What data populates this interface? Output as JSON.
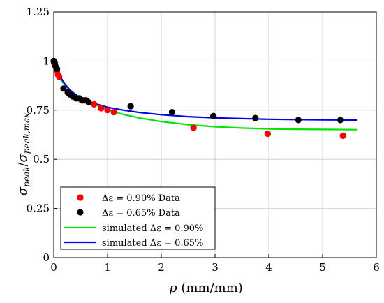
{
  "chart_data": {
    "type": "scatter",
    "xlabel": "p (mm/mm)",
    "ylabel": "σpeak/σpeak,max",
    "xlim": [
      0,
      6
    ],
    "ylim": [
      0,
      1.25
    ],
    "x_ticks": [
      "0",
      "1",
      "2",
      "3",
      "4",
      "5",
      "6"
    ],
    "y_ticks": [
      "0",
      "0.25",
      "0.5",
      "0.75",
      "1",
      "1.25"
    ],
    "grid": true,
    "legend_position": "bottom-left",
    "series": [
      {
        "name": "Δε = 0.90% Data",
        "kind": "scatter",
        "color": "#ff0000",
        "points": [
          [
            0.0,
            1.0
          ],
          [
            0.02,
            0.99
          ],
          [
            0.04,
            0.97
          ],
          [
            0.06,
            0.95
          ],
          [
            0.08,
            0.93
          ],
          [
            0.1,
            0.92
          ],
          [
            0.45,
            0.81
          ],
          [
            0.52,
            0.8
          ],
          [
            0.58,
            0.8
          ],
          [
            0.75,
            0.78
          ],
          [
            0.88,
            0.76
          ],
          [
            1.0,
            0.75
          ],
          [
            1.12,
            0.74
          ],
          [
            2.6,
            0.66
          ],
          [
            3.98,
            0.63
          ],
          [
            5.38,
            0.62
          ]
        ]
      },
      {
        "name": "Δε = 0.65% Data",
        "kind": "scatter",
        "color": "#000000",
        "points": [
          [
            0.0,
            1.0
          ],
          [
            0.01,
            0.99
          ],
          [
            0.02,
            0.98
          ],
          [
            0.04,
            0.97
          ],
          [
            0.06,
            0.96
          ],
          [
            0.18,
            0.86
          ],
          [
            0.26,
            0.84
          ],
          [
            0.3,
            0.83
          ],
          [
            0.35,
            0.82
          ],
          [
            0.42,
            0.81
          ],
          [
            0.48,
            0.81
          ],
          [
            0.54,
            0.8
          ],
          [
            0.6,
            0.8
          ],
          [
            0.65,
            0.79
          ],
          [
            1.43,
            0.77
          ],
          [
            2.2,
            0.74
          ],
          [
            2.97,
            0.72
          ],
          [
            3.75,
            0.71
          ],
          [
            4.55,
            0.7
          ],
          [
            5.33,
            0.7
          ]
        ]
      },
      {
        "name": "simulated Δε = 0.90%",
        "kind": "line",
        "color": "#00e600",
        "points": [
          [
            0.0,
            0.96
          ],
          [
            0.1,
            0.915
          ],
          [
            0.2,
            0.88
          ],
          [
            0.3,
            0.853
          ],
          [
            0.4,
            0.832
          ],
          [
            0.5,
            0.813
          ],
          [
            0.7,
            0.785
          ],
          [
            1.0,
            0.753
          ],
          [
            1.3,
            0.728
          ],
          [
            1.6,
            0.71
          ],
          [
            2.0,
            0.692
          ],
          [
            2.5,
            0.676
          ],
          [
            3.0,
            0.666
          ],
          [
            3.5,
            0.659
          ],
          [
            4.0,
            0.655
          ],
          [
            4.5,
            0.653
          ],
          [
            5.0,
            0.652
          ],
          [
            5.65,
            0.651
          ]
        ]
      },
      {
        "name": "simulated Δε = 0.65%",
        "kind": "line",
        "color": "#0000e6",
        "points": [
          [
            0.0,
            1.0
          ],
          [
            0.05,
            0.96
          ],
          [
            0.1,
            0.93
          ],
          [
            0.2,
            0.885
          ],
          [
            0.3,
            0.853
          ],
          [
            0.4,
            0.83
          ],
          [
            0.5,
            0.812
          ],
          [
            0.7,
            0.788
          ],
          [
            1.0,
            0.765
          ],
          [
            1.3,
            0.75
          ],
          [
            1.6,
            0.738
          ],
          [
            2.0,
            0.727
          ],
          [
            2.5,
            0.717
          ],
          [
            3.0,
            0.711
          ],
          [
            3.5,
            0.707
          ],
          [
            4.0,
            0.704
          ],
          [
            4.5,
            0.702
          ],
          [
            5.0,
            0.701
          ],
          [
            5.65,
            0.7
          ]
        ]
      }
    ]
  }
}
